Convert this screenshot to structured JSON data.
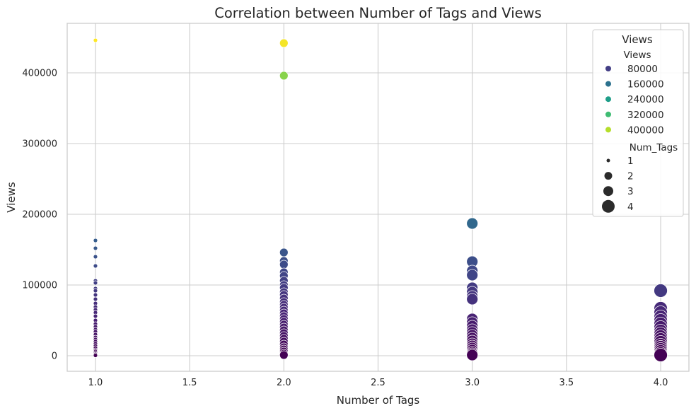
{
  "chart_data": {
    "type": "scatter",
    "title": "Correlation between Number of Tags and Views",
    "xlabel": "Number of Tags",
    "ylabel": "Views",
    "xlim": [
      0.85,
      4.15
    ],
    "ylim": [
      -22000,
      470000
    ],
    "xticks": [
      1.0,
      1.5,
      2.0,
      2.5,
      3.0,
      3.5,
      4.0
    ],
    "xtick_labels": [
      "1.0",
      "1.5",
      "2.0",
      "2.5",
      "3.0",
      "3.5",
      "4.0"
    ],
    "yticks": [
      0,
      100000,
      200000,
      300000,
      400000
    ],
    "ytick_labels": [
      "0",
      "100000",
      "200000",
      "300000",
      "400000"
    ],
    "grid": true,
    "hue": "Views",
    "size": "Num_Tags",
    "colormap": "viridis",
    "hue_range": [
      0,
      446000
    ],
    "groups": [
      {
        "x": 1,
        "y": [
          446000,
          163000,
          152000,
          140000,
          127000,
          106000,
          103000,
          95000,
          92000,
          86000,
          80000,
          74000,
          69000,
          65000,
          61000,
          56000,
          50000,
          45000,
          41000,
          37000,
          34000,
          30000,
          26000,
          23000,
          20000,
          17000,
          14000,
          11000,
          8000,
          6000,
          4000,
          2000,
          500
        ]
      },
      {
        "x": 2,
        "y": [
          442000,
          396000,
          146000,
          134000,
          129000,
          118000,
          113000,
          106000,
          100000,
          96000,
          90000,
          86000,
          81000,
          76000,
          72000,
          68000,
          64000,
          60000,
          56000,
          52000,
          48000,
          44000,
          40000,
          36000,
          32000,
          28000,
          24000,
          20000,
          16000,
          12000,
          9000,
          6000,
          3000,
          1000
        ]
      },
      {
        "x": 3,
        "y": [
          187000,
          133000,
          120000,
          114000,
          96000,
          90000,
          84000,
          80000,
          52000,
          47000,
          42000,
          37000,
          33000,
          29000,
          25000,
          21000,
          17000,
          14000,
          11000,
          8000,
          5000,
          3000,
          1000
        ]
      },
      {
        "x": 4,
        "y": [
          92000,
          67000,
          61000,
          55000,
          50000,
          45000,
          40000,
          35000,
          31000,
          27000,
          23000,
          19000,
          15000,
          12000,
          9000,
          6000,
          3000,
          1000
        ]
      }
    ],
    "legend": {
      "title": "Views",
      "placement": "top-right",
      "hue_title": "Views",
      "hue_entries": [
        {
          "label": "80000",
          "value": 80000,
          "color": "#433e85"
        },
        {
          "label": "160000",
          "value": 160000,
          "color": "#2c718e"
        },
        {
          "label": "240000",
          "value": 240000,
          "color": "#1f9e89"
        },
        {
          "label": "320000",
          "value": 320000,
          "color": "#3fbc73"
        },
        {
          "label": "400000",
          "value": 400000,
          "color": "#b5de2b"
        }
      ],
      "size_title": "Num_Tags",
      "size_entries": [
        {
          "label": "1",
          "value": 1
        },
        {
          "label": "2",
          "value": 2
        },
        {
          "label": "3",
          "value": 3
        },
        {
          "label": "4",
          "value": 4
        }
      ]
    }
  }
}
